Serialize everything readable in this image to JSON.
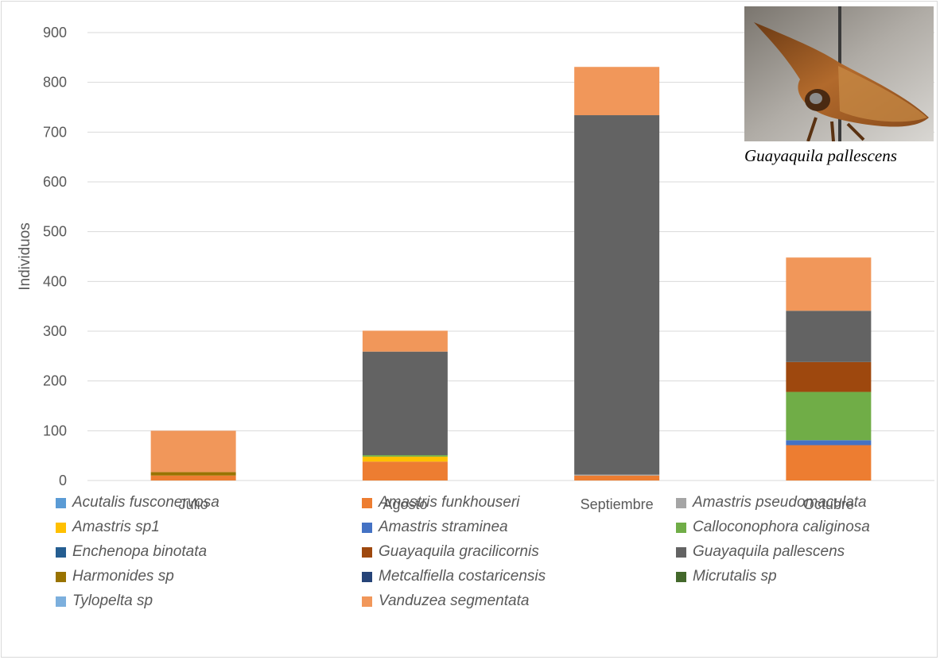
{
  "chart_data": {
    "type": "bar",
    "stacked": true,
    "ylabel": "Individuos",
    "ylim": [
      0,
      900
    ],
    "yticks": [
      0,
      100,
      200,
      300,
      400,
      500,
      600,
      700,
      800,
      900
    ],
    "grid": true,
    "legend_position": "bottom",
    "categories": [
      "Julio",
      "Agosto",
      "Septiembre",
      "Octubre"
    ],
    "series": [
      {
        "name": "Acutalis fusconervosa",
        "color": "#5b9bd5",
        "values": [
          0,
          0,
          0,
          0
        ]
      },
      {
        "name": "Amastris funkhouseri",
        "color": "#ed7d31",
        "values": [
          10,
          38,
          10,
          71
        ]
      },
      {
        "name": "Amastris pseudomaculata",
        "color": "#a5a5a5",
        "values": [
          0,
          0,
          2,
          0
        ]
      },
      {
        "name": "Amastris sp1",
        "color": "#ffc000",
        "values": [
          0,
          10,
          0,
          0
        ]
      },
      {
        "name": "Amastris straminea",
        "color": "#4472c4",
        "values": [
          0,
          0,
          0,
          10
        ]
      },
      {
        "name": "Calloconophora caliginosa",
        "color": "#70ad47",
        "values": [
          0,
          3,
          0,
          97
        ]
      },
      {
        "name": "Enchenopa binotata",
        "color": "#255e91",
        "values": [
          0,
          0,
          0,
          0
        ]
      },
      {
        "name": "Guayaquila gracilicornis",
        "color": "#9e480e",
        "values": [
          0,
          0,
          0,
          60
        ]
      },
      {
        "name": "Guayaquila pallescens",
        "color": "#636363",
        "values": [
          0,
          208,
          722,
          103
        ]
      },
      {
        "name": "Harmonides sp",
        "color": "#997300",
        "values": [
          7,
          0,
          0,
          0
        ]
      },
      {
        "name": "Metcalfiella costaricensis",
        "color": "#264478",
        "values": [
          0,
          0,
          0,
          0
        ]
      },
      {
        "name": "Micrutalis sp",
        "color": "#43682b",
        "values": [
          0,
          0,
          0,
          0
        ]
      },
      {
        "name": "Tylopelta sp",
        "color": "#7cafdd",
        "values": [
          0,
          0,
          0,
          0
        ]
      },
      {
        "name": "Vanduzea segmentata",
        "color": "#f1975a",
        "values": [
          83,
          42,
          97,
          107
        ]
      }
    ]
  },
  "photo": {
    "caption": "Guayaquila pallescens",
    "icon": "treehopper-photo"
  }
}
